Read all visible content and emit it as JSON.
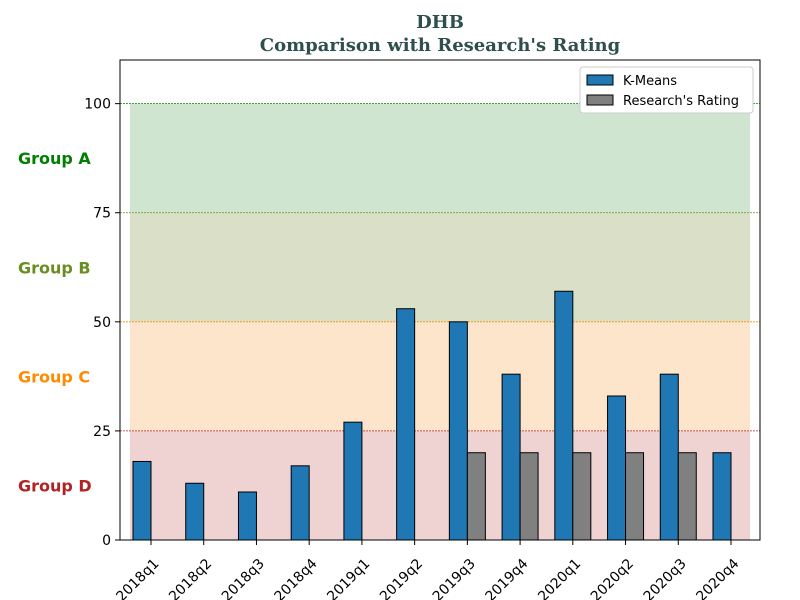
{
  "chart_data": {
    "type": "bar",
    "title": "DHB",
    "subtitle": "Comparison with Research's Rating",
    "categories": [
      "2018q1",
      "2018q2",
      "2018q3",
      "2018q4",
      "2019q1",
      "2019q2",
      "2019q3",
      "2019q4",
      "2020q1",
      "2020q2",
      "2020q3",
      "2020q4"
    ],
    "series": [
      {
        "name": "K-Means",
        "color": "#1f77b4",
        "values": [
          18,
          13,
          11,
          17,
          27,
          53,
          50,
          38,
          57,
          33,
          38,
          20
        ]
      },
      {
        "name": "Research's Rating",
        "color": "#808080",
        "values": [
          null,
          null,
          null,
          null,
          null,
          null,
          20,
          20,
          20,
          20,
          20,
          null
        ]
      }
    ],
    "ylim": [
      0,
      110
    ],
    "yticks": [
      0,
      25,
      50,
      75,
      100
    ],
    "legend_position": "top-right",
    "bands": [
      {
        "label": "Group A",
        "from": 75,
        "to": 100,
        "fill": "#cfe5cf",
        "label_color": "#008000",
        "line_color": "#008000"
      },
      {
        "label": "Group B",
        "from": 50,
        "to": 75,
        "fill": "#d9e0c7",
        "label_color": "#6b8e23",
        "line_color": "#6b8e23"
      },
      {
        "label": "Group C",
        "from": 25,
        "to": 50,
        "fill": "#fde5cb",
        "label_color": "#ff8c00",
        "line_color": "#ff8c00"
      },
      {
        "label": "Group D",
        "from": 0,
        "to": 25,
        "fill": "#efd3d3",
        "label_color": "#b22222",
        "line_color": "#b22222"
      }
    ]
  }
}
